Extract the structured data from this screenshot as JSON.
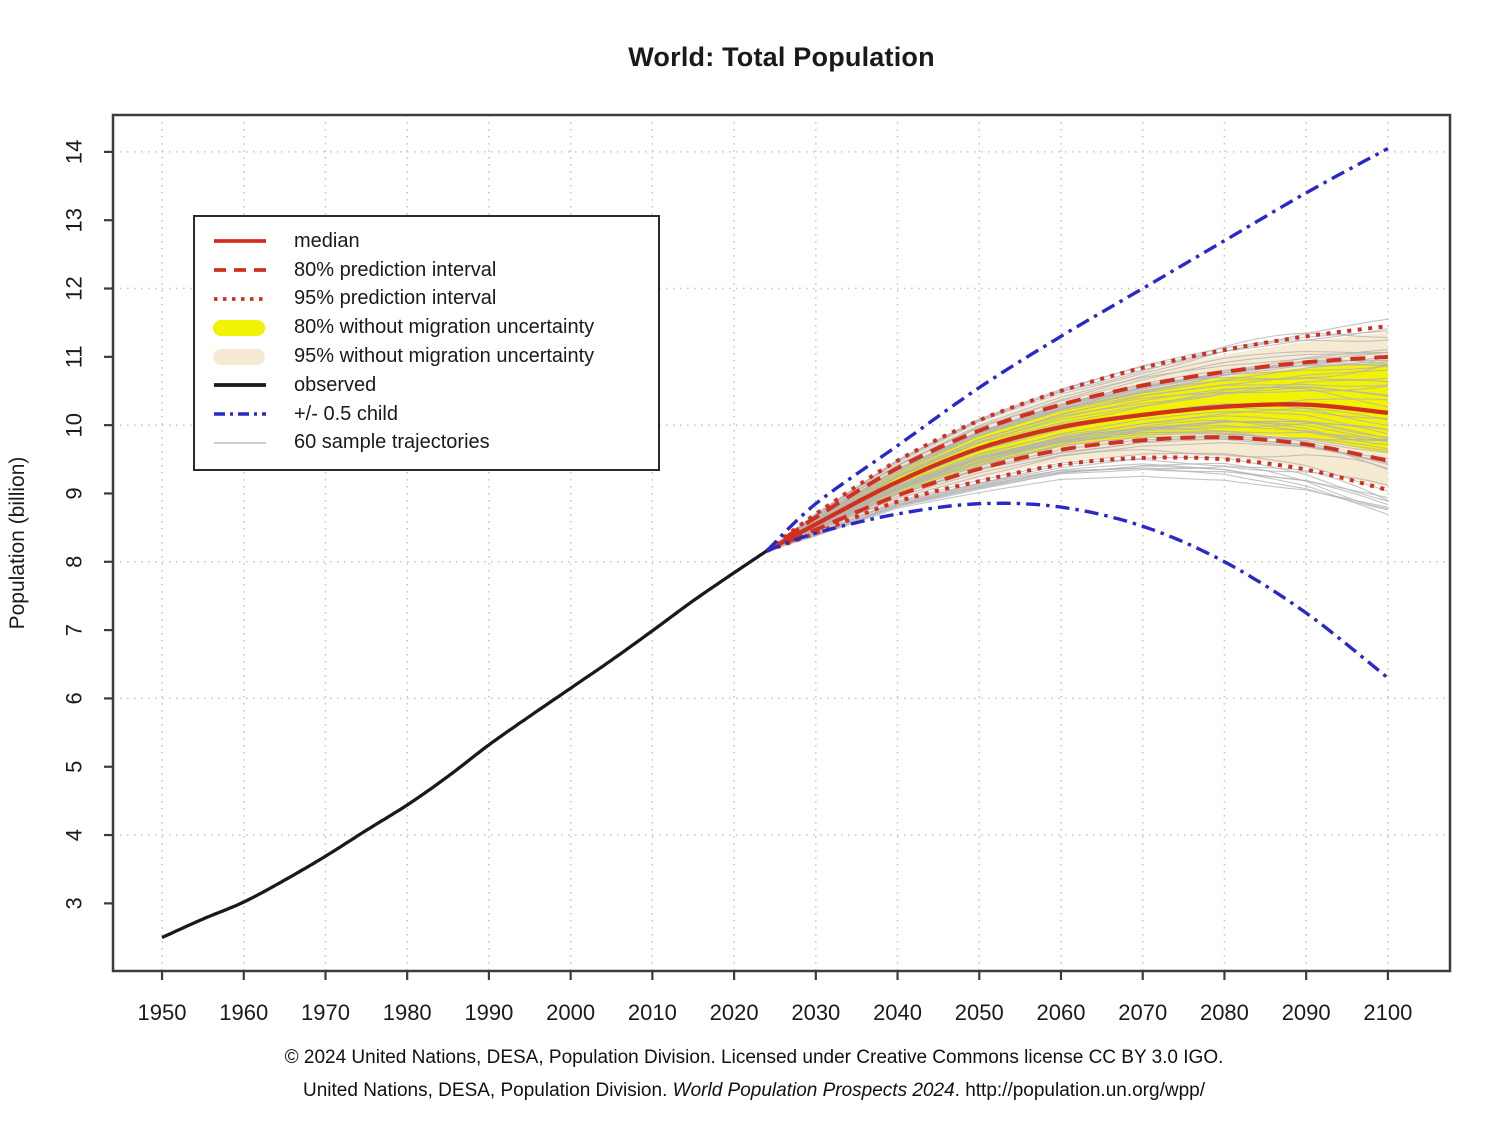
{
  "page": {
    "background": "#ffffff"
  },
  "chart_data": {
    "type": "line",
    "title": "World: Total Population",
    "xlabel": "",
    "ylabel": "Population (billion)",
    "x_ticks": [
      1950,
      1960,
      1970,
      1980,
      1990,
      2000,
      2010,
      2020,
      2030,
      2040,
      2050,
      2060,
      2070,
      2080,
      2090,
      2100
    ],
    "y_ticks": [
      3,
      4,
      5,
      6,
      7,
      8,
      9,
      10,
      11,
      12,
      13,
      14
    ],
    "xlim": [
      1944,
      2107.6
    ],
    "ylim": [
      2.01,
      14.54
    ],
    "grid": {
      "visible": true,
      "x_at": [
        1950,
        1960,
        1970,
        1980,
        1990,
        2000,
        2010,
        2020,
        2030,
        2040,
        2050,
        2060,
        2070,
        2080,
        2090,
        2100
      ],
      "y_at": [
        4,
        6,
        8,
        10,
        12,
        14
      ]
    },
    "observed": {
      "name": "observed",
      "years": [
        1950,
        1955,
        1960,
        1965,
        1970,
        1975,
        1980,
        1985,
        1990,
        1995,
        2000,
        2005,
        2010,
        2015,
        2020,
        2024
      ],
      "values": [
        2.5,
        2.77,
        3.02,
        3.34,
        3.69,
        4.07,
        4.44,
        4.86,
        5.32,
        5.74,
        6.15,
        6.56,
        6.99,
        7.43,
        7.84,
        8.16
      ]
    },
    "projection": {
      "years": [
        2024,
        2030,
        2040,
        2050,
        2060,
        2070,
        2080,
        2090,
        2100
      ],
      "median": [
        8.16,
        8.55,
        9.17,
        9.66,
        9.97,
        10.15,
        10.27,
        10.3,
        10.18
      ],
      "pi80_upper": [
        8.16,
        8.65,
        9.37,
        9.92,
        10.3,
        10.58,
        10.78,
        10.92,
        11.0
      ],
      "pi80_lower": [
        8.16,
        8.47,
        8.97,
        9.36,
        9.64,
        9.78,
        9.82,
        9.72,
        9.48
      ],
      "pi95_upper": [
        8.16,
        8.7,
        9.48,
        10.07,
        10.5,
        10.84,
        11.1,
        11.3,
        11.45
      ],
      "pi95_lower": [
        8.16,
        8.42,
        8.88,
        9.18,
        9.42,
        9.52,
        9.5,
        9.35,
        9.05
      ],
      "band80_no_migration_upper": [
        8.16,
        8.63,
        9.32,
        9.86,
        10.23,
        10.5,
        10.7,
        10.84,
        10.92
      ],
      "band80_no_migration_lower": [
        8.16,
        8.48,
        9.0,
        9.4,
        9.68,
        9.83,
        9.88,
        9.8,
        9.58
      ],
      "band95_no_migration_upper": [
        8.16,
        8.68,
        9.44,
        10.02,
        10.44,
        10.78,
        11.03,
        11.22,
        11.36
      ],
      "band95_no_migration_lower": [
        8.16,
        8.43,
        8.9,
        9.22,
        9.46,
        9.55,
        9.53,
        9.37,
        9.08
      ],
      "plus_half_child": [
        8.16,
        8.85,
        9.7,
        10.55,
        11.3,
        12.0,
        12.7,
        13.4,
        14.05
      ],
      "minus_half_child": [
        8.16,
        8.42,
        8.7,
        8.85,
        8.8,
        8.52,
        8.0,
        7.25,
        6.3
      ]
    },
    "sample_trajectories": {
      "count": 60,
      "seed": 11
    },
    "colors": {
      "red": "#d2301e",
      "blue": "#2929c8",
      "black": "#1a1a1a",
      "yellow_band": "#f2f203",
      "beige_band": "#f7ead3",
      "trajectory_gray": "#b3b3b3",
      "grid": "#c6c6c6",
      "axis": "#3c3c3c",
      "text": "#1a1a1a"
    }
  },
  "legend": {
    "items": [
      {
        "label": "median",
        "style": "solid",
        "color": "red"
      },
      {
        "label": "80% prediction interval",
        "style": "dashed",
        "color": "red"
      },
      {
        "label": "95% prediction interval",
        "style": "dotted",
        "color": "red"
      },
      {
        "label": "80% without migration uncertainty",
        "style": "band",
        "color": "yellow_band"
      },
      {
        "label": "95% without migration uncertainty",
        "style": "band",
        "color": "beige_band"
      },
      {
        "label": "observed",
        "style": "solid",
        "color": "black"
      },
      {
        "label": "+/- 0.5 child",
        "style": "dashdot",
        "color": "blue"
      },
      {
        "label": "60 sample trajectories",
        "style": "thin",
        "color": "trajectory_gray"
      }
    ]
  },
  "footer": {
    "lines": [
      {
        "segments": [
          {
            "text": "© 2024 United Nations, DESA, Population Division. Licensed under Creative Commons license CC BY 3.0 IGO.",
            "italic": false
          }
        ]
      },
      {
        "segments": [
          {
            "text": "United Nations, DESA, Population Division. ",
            "italic": false
          },
          {
            "text": "World Population Prospects 2024",
            "italic": true
          },
          {
            "text": ". http://population.un.org/wpp/",
            "italic": false
          }
        ]
      }
    ]
  }
}
